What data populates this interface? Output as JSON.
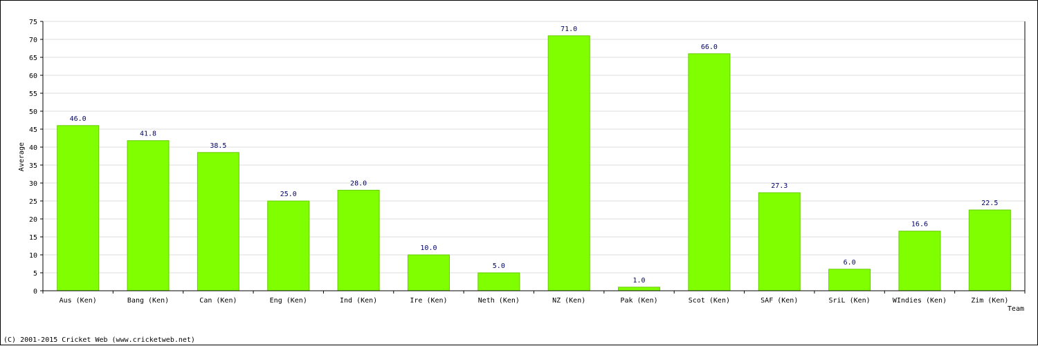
{
  "chart_data": {
    "type": "bar",
    "categories": [
      "Aus (Ken)",
      "Bang (Ken)",
      "Can (Ken)",
      "Eng (Ken)",
      "Ind (Ken)",
      "Ire (Ken)",
      "Neth (Ken)",
      "NZ (Ken)",
      "Pak (Ken)",
      "Scot (Ken)",
      "SAF (Ken)",
      "SriL (Ken)",
      "WIndies (Ken)",
      "Zim (Ken)"
    ],
    "values": [
      46.0,
      41.8,
      38.5,
      25.0,
      28.0,
      10.0,
      5.0,
      71.0,
      1.0,
      66.0,
      27.3,
      6.0,
      16.6,
      22.5
    ],
    "data_labels": [
      "46.0",
      "41.8",
      "38.5",
      "25.0",
      "28.0",
      "10.0",
      "5.0",
      "71.0",
      "1.0",
      "66.0",
      "27.3",
      "6.0",
      "16.6",
      "22.5"
    ],
    "title": "",
    "xlabel": "Team",
    "ylabel": "Average",
    "ylim": [
      0,
      75
    ],
    "yticks": [
      0,
      5,
      10,
      15,
      20,
      25,
      30,
      35,
      40,
      45,
      50,
      55,
      60,
      65,
      70,
      75
    ],
    "grid": true,
    "colors": {
      "bar": "#7fff00",
      "bar_edge": "#66cc00",
      "data_label": "#000066",
      "grid": "#dddddd",
      "axis": "#000000"
    }
  },
  "footer": {
    "copyright": "(C) 2001-2015 Cricket Web (www.cricketweb.net)"
  }
}
